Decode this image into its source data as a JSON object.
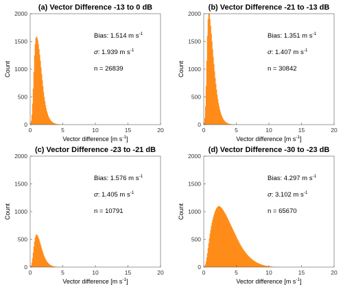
{
  "chart_data": [
    {
      "type": "bar",
      "title": "(a) Vector Difference -13 to 0 dB",
      "xlabel": "Vector difference [m s",
      "xlabel_sup": "-1",
      "xlabel_end": "]",
      "ylabel": "Count",
      "xlim": [
        0,
        20
      ],
      "ylim": [
        0,
        2000
      ],
      "xticks": [
        "0",
        "5",
        "10",
        "15",
        "20"
      ],
      "yticks": [
        "0",
        "500",
        "1000",
        "1500",
        "2000"
      ],
      "stats": {
        "bias_label": "Bias: 1.514 m s",
        "bias_sup": "-1",
        "sigma_symbol": "σ",
        "sigma_label": ": 1.939 m s",
        "sigma_sup": "-1",
        "n_label": "n = 26839"
      },
      "color": "#ff8c19",
      "bins": {
        "x_start": 0,
        "x_step": 0.1,
        "counts": [
          20,
          70,
          180,
          380,
          650,
          950,
          1250,
          1450,
          1560,
          1590,
          1570,
          1520,
          1450,
          1360,
          1260,
          1150,
          1030,
          910,
          800,
          690,
          590,
          500,
          420,
          350,
          290,
          240,
          200,
          165,
          135,
          110,
          92,
          76,
          62,
          51,
          42,
          35,
          29,
          24,
          20,
          16,
          13,
          11,
          9,
          7,
          6,
          5,
          4,
          3,
          3,
          2,
          2,
          1,
          1,
          1,
          1
        ]
      }
    },
    {
      "type": "bar",
      "title": "(b) Vector Difference -21 to -13 dB",
      "xlabel": "Vector difference [m s",
      "xlabel_sup": "-1",
      "xlabel_end": "]",
      "ylabel": "Count",
      "xlim": [
        0,
        20
      ],
      "ylim": [
        0,
        2000
      ],
      "xticks": [
        "0",
        "5",
        "10",
        "15",
        "20"
      ],
      "yticks": [
        "0",
        "500",
        "1000",
        "1500",
        "2000"
      ],
      "stats": {
        "bias_label": "Bias: 1.351 m s",
        "bias_sup": "-1",
        "sigma_symbol": "σ",
        "sigma_label": ": 1.407 m s",
        "sigma_sup": "-1",
        "n_label": "n = 30842"
      },
      "color": "#ff8c19",
      "bins": {
        "x_start": 0,
        "x_step": 0.1,
        "counts": [
          30,
          120,
          330,
          700,
          1150,
          1600,
          1900,
          2050,
          2000,
          1900,
          1780,
          1640,
          1500,
          1360,
          1220,
          1090,
          960,
          840,
          730,
          630,
          540,
          460,
          390,
          330,
          275,
          230,
          190,
          158,
          130,
          107,
          88,
          72,
          59,
          48,
          39,
          32,
          26,
          21,
          17,
          14,
          11,
          9,
          7,
          6,
          5,
          4,
          3,
          2,
          2,
          1,
          1,
          1
        ]
      }
    },
    {
      "type": "bar",
      "title": "(c) Vector Difference -23 to -21 dB",
      "xlabel": "Vector difference [m s",
      "xlabel_sup": "-1",
      "xlabel_end": "]",
      "ylabel": "Count",
      "xlim": [
        0,
        20
      ],
      "ylim": [
        0,
        2000
      ],
      "xticks": [
        "0",
        "5",
        "10",
        "15",
        "20"
      ],
      "yticks": [
        "0",
        "500",
        "1000",
        "1500",
        "2000"
      ],
      "stats": {
        "bias_label": "Bias: 1.576 m s",
        "bias_sup": "-1",
        "sigma_symbol": "σ",
        "sigma_label": ": 1.405 m s",
        "sigma_sup": "-1",
        "n_label": "n = 10791"
      },
      "color": "#ff8c19",
      "bins": {
        "x_start": 0,
        "x_step": 0.1,
        "counts": [
          10,
          30,
          80,
          160,
          260,
          370,
          460,
          530,
          570,
          590,
          580,
          560,
          530,
          500,
          460,
          420,
          380,
          340,
          300,
          262,
          228,
          196,
          168,
          143,
          121,
          102,
          86,
          72,
          60,
          50,
          41,
          34,
          28,
          23,
          19,
          15,
          12,
          10,
          8,
          6,
          5,
          4,
          3,
          3,
          2,
          2,
          1,
          1,
          1
        ]
      }
    },
    {
      "type": "bar",
      "title": "(d) Vector Difference -30 to -23 dB",
      "xlabel": "Vector difference [m s",
      "xlabel_sup": "-1",
      "xlabel_end": "]",
      "ylabel": "Count",
      "xlim": [
        0,
        20
      ],
      "ylim": [
        0,
        2000
      ],
      "xticks": [
        "0",
        "5",
        "10",
        "15",
        "20"
      ],
      "yticks": [
        "0",
        "500",
        "1000",
        "1500",
        "2000"
      ],
      "stats": {
        "bias_label": "Bias: 4.297 m s",
        "bias_sup": "-1",
        "sigma_symbol": "σ",
        "sigma_label": ": 3.102 m s",
        "sigma_sup": "-1",
        "n_label": "n = 65670"
      },
      "color": "#ff8c19",
      "bins": {
        "x_start": 0,
        "x_step": 0.1,
        "counts": [
          5,
          20,
          50,
          100,
          170,
          250,
          340,
          430,
          520,
          600,
          670,
          740,
          800,
          850,
          900,
          940,
          980,
          1010,
          1040,
          1060,
          1080,
          1090,
          1100,
          1100,
          1095,
          1085,
          1075,
          1060,
          1045,
          1030,
          1010,
          990,
          970,
          950,
          930,
          905,
          880,
          855,
          830,
          805,
          780,
          755,
          730,
          705,
          680,
          655,
          630,
          605,
          580,
          555,
          530,
          505,
          482,
          460,
          438,
          416,
          395,
          375,
          356,
          338,
          320,
          302,
          286,
          270,
          255,
          240,
          226,
          213,
          200,
          188,
          176,
          165,
          155,
          145,
          135,
          126,
          118,
          110,
          102,
          95,
          88,
          82,
          76,
          70,
          65,
          60,
          55,
          50,
          46,
          42,
          38,
          35,
          32,
          29,
          26,
          24,
          22,
          20,
          18,
          16,
          14,
          12,
          10,
          9,
          8,
          7,
          6,
          5,
          4,
          3,
          3,
          2,
          2,
          1,
          1,
          1,
          1,
          1
        ]
      }
    }
  ]
}
